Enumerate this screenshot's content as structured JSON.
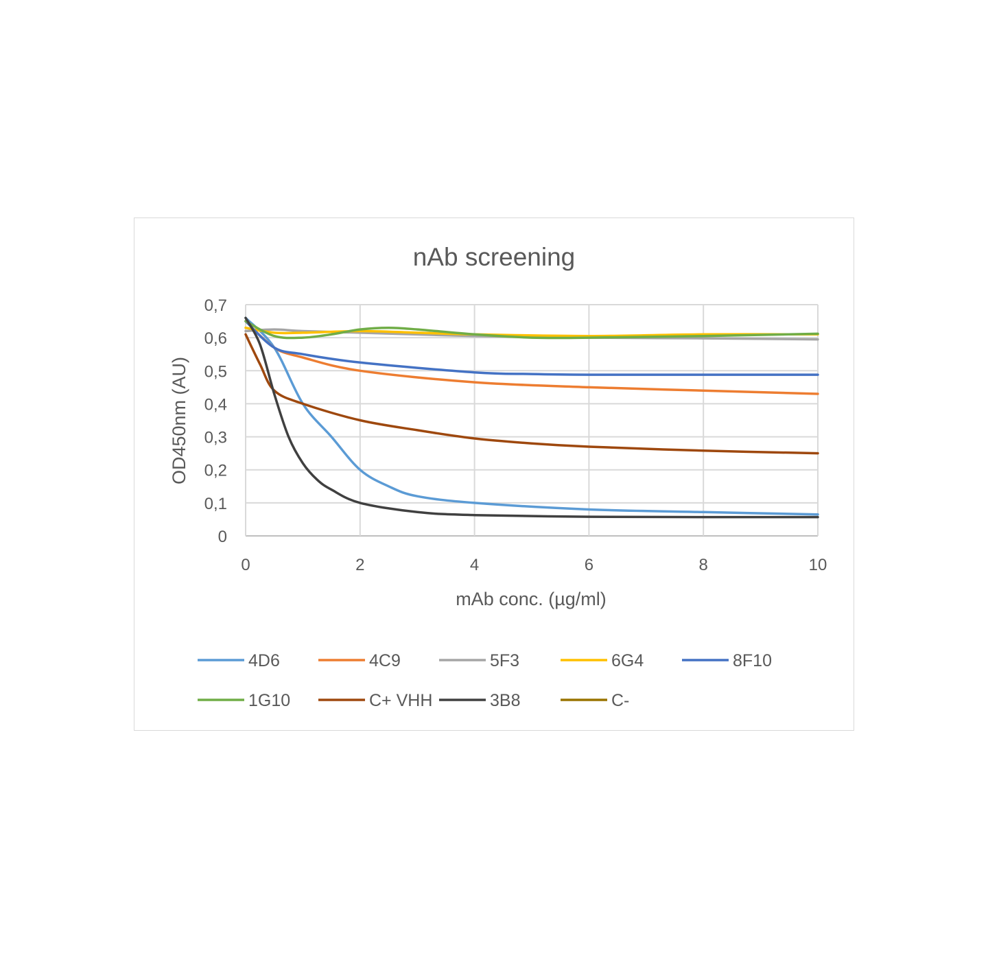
{
  "chart_data": {
    "type": "line",
    "title": "nAb screening",
    "xlabel": "mAb conc. (µg/ml)",
    "ylabel": "OD450nm (AU)",
    "xlim": [
      0,
      10
    ],
    "ylim": [
      0,
      0.7
    ],
    "x_ticks": [
      "0",
      "2",
      "4",
      "6",
      "8",
      "10"
    ],
    "y_ticks": [
      "0",
      "0,1",
      "0,2",
      "0,3",
      "0,4",
      "0,5",
      "0,6",
      "0,7"
    ],
    "grid": true,
    "legend_position": "bottom",
    "series": [
      {
        "name": "4D6",
        "color": "#5B9BD5",
        "x": [
          0,
          0.5,
          1,
          1.5,
          2,
          2.5,
          3,
          4,
          6,
          8,
          10
        ],
        "y": [
          0.66,
          0.57,
          0.4,
          0.3,
          0.2,
          0.15,
          0.12,
          0.1,
          0.08,
          0.072,
          0.065
        ]
      },
      {
        "name": "4C9",
        "color": "#ED7D31",
        "x": [
          0,
          0.5,
          1,
          2,
          4,
          6,
          8,
          10
        ],
        "y": [
          0.65,
          0.57,
          0.54,
          0.5,
          0.465,
          0.45,
          0.44,
          0.43
        ]
      },
      {
        "name": "5F3",
        "color": "#A5A5A5",
        "x": [
          0,
          0.5,
          1,
          2,
          4,
          6,
          8,
          10
        ],
        "y": [
          0.62,
          0.625,
          0.62,
          0.615,
          0.605,
          0.6,
          0.598,
          0.595
        ]
      },
      {
        "name": "6G4",
        "color": "#FFC000",
        "x": [
          0,
          0.5,
          1,
          2,
          3,
          4,
          6,
          8,
          10
        ],
        "y": [
          0.63,
          0.615,
          0.615,
          0.62,
          0.615,
          0.61,
          0.605,
          0.61,
          0.61
        ]
      },
      {
        "name": "8F10",
        "color": "#4472C4",
        "x": [
          0,
          0.5,
          1,
          2,
          4,
          5,
          6,
          8,
          10
        ],
        "y": [
          0.65,
          0.57,
          0.55,
          0.525,
          0.495,
          0.49,
          0.488,
          0.488,
          0.488
        ]
      },
      {
        "name": "1G10",
        "color": "#70AD47",
        "x": [
          0,
          0.5,
          1,
          1.5,
          2,
          2.5,
          3,
          4,
          5,
          6,
          8,
          10
        ],
        "y": [
          0.65,
          0.605,
          0.6,
          0.61,
          0.625,
          0.63,
          0.625,
          0.61,
          0.6,
          0.6,
          0.605,
          0.612
        ]
      },
      {
        "name": "C+ VHH",
        "color": "#9E480E",
        "x": [
          0,
          0.25,
          0.5,
          1,
          2,
          3,
          4,
          5,
          6,
          8,
          10
        ],
        "y": [
          0.61,
          0.52,
          0.44,
          0.4,
          0.35,
          0.32,
          0.295,
          0.28,
          0.27,
          0.258,
          0.25
        ]
      },
      {
        "name": "3B8",
        "color": "#404040",
        "x": [
          0,
          0.25,
          0.5,
          0.75,
          1,
          1.25,
          1.5,
          2,
          3,
          4,
          6,
          8,
          10
        ],
        "y": [
          0.66,
          0.58,
          0.43,
          0.3,
          0.22,
          0.17,
          0.14,
          0.1,
          0.072,
          0.063,
          0.058,
          0.057,
          0.057
        ]
      },
      {
        "name": "C-",
        "color": "#997300",
        "x": [],
        "y": []
      }
    ]
  }
}
